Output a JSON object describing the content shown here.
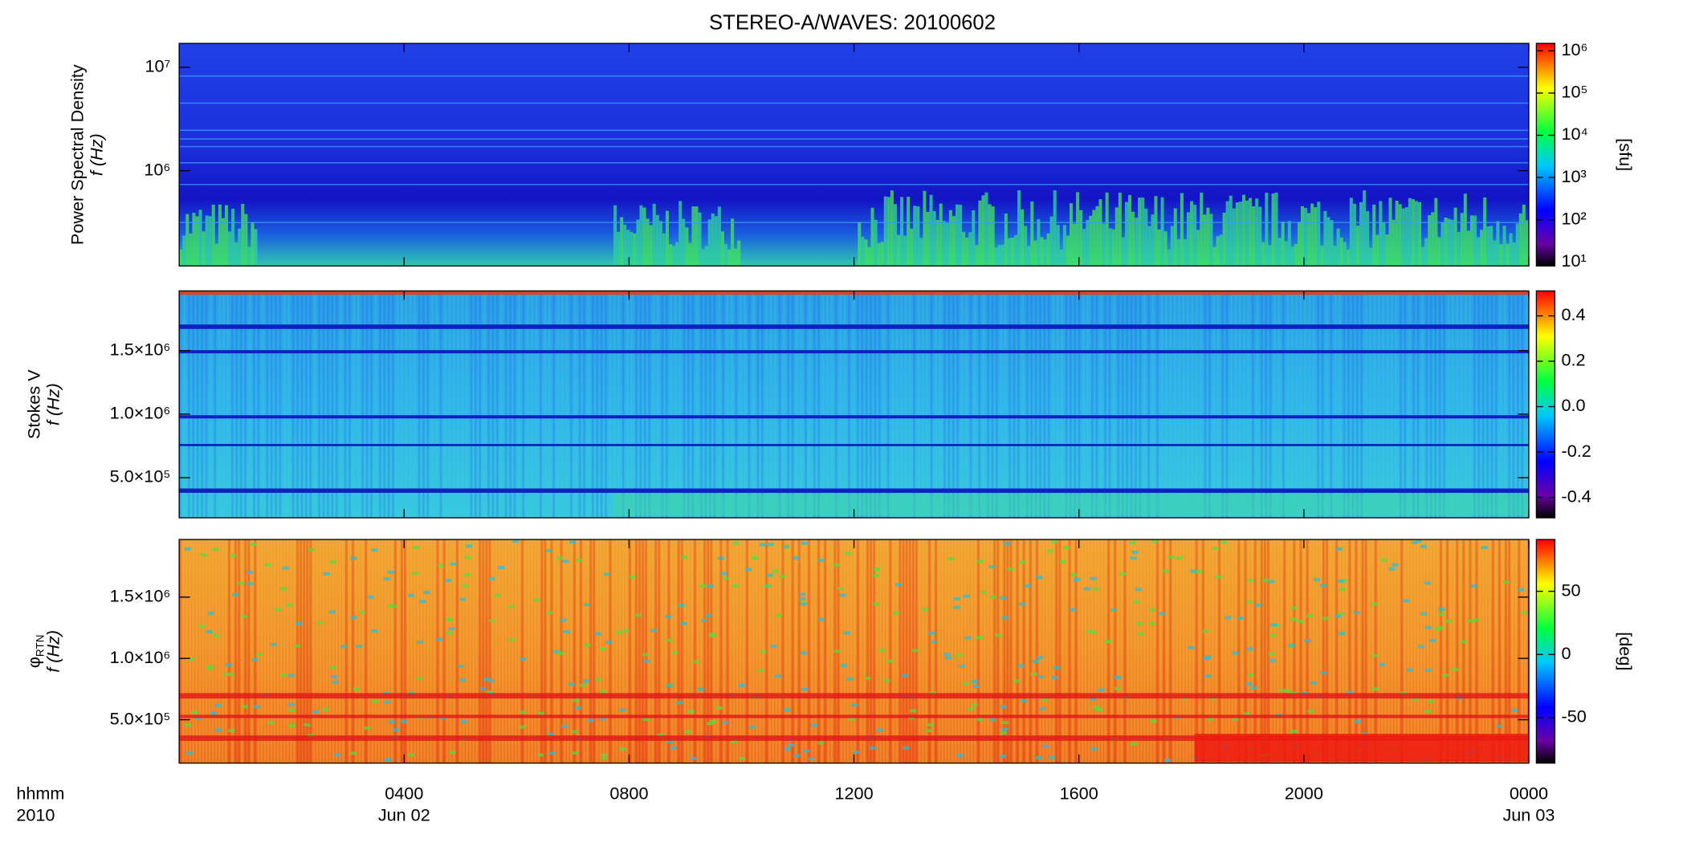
{
  "chart_data": [
    {
      "type": "heatmap",
      "title": "STEREO-A/WAVES: 20100602",
      "ylabel_lines": [
        "Power Spectral Density",
        "f (Hz)"
      ],
      "ylog": true,
      "ylim": [
        120000,
        17000000
      ],
      "yticks": [
        {
          "value": 1000000,
          "label": "10⁶"
        },
        {
          "value": 10000000,
          "label": "10⁷"
        }
      ],
      "clog": true,
      "clim": [
        8,
        1500000
      ],
      "cticks": [
        {
          "value": 10,
          "label": "10¹"
        },
        {
          "value": 100,
          "label": "10²"
        },
        {
          "value": 1000,
          "label": "10³"
        },
        {
          "value": 10000,
          "label": "10⁴"
        },
        {
          "value": 100000,
          "label": "10⁵"
        },
        {
          "value": 1000000,
          "label": "10⁶"
        }
      ],
      "clabel": "[sfu]"
    },
    {
      "type": "heatmap",
      "ylabel_lines": [
        "Stokes V",
        "f (Hz)"
      ],
      "ylog": false,
      "ylim": [
        184000,
        1970000
      ],
      "yticks": [
        {
          "value": 500000,
          "label": "5.0×10⁵"
        },
        {
          "value": 1000000,
          "label": "1.0×10⁶"
        },
        {
          "value": 1500000,
          "label": "1.5×10⁶"
        }
      ],
      "clog": false,
      "clim": [
        -0.49,
        0.51
      ],
      "cticks": [
        -0.4,
        -0.2,
        {
          "value": 0,
          "label": "0.0"
        },
        0.2,
        0.4
      ]
    },
    {
      "type": "heatmap",
      "ylabel_lines": [
        "φ",
        "f (Hz)"
      ],
      "ylabel_subscript": "RTN",
      "ylog": false,
      "ylim": [
        146000,
        1970000
      ],
      "yticks": [
        {
          "value": 500000,
          "label": "5.0×10⁵"
        },
        {
          "value": 1000000,
          "label": "1.0×10⁶"
        },
        {
          "value": 1500000,
          "label": "1.5×10⁶"
        }
      ],
      "clog": false,
      "clim": [
        -86,
        91
      ],
      "cticks": [
        -50,
        0,
        50
      ],
      "clabel": "[deg]",
      "xlabel_lines": [
        "hhmm",
        "2010"
      ],
      "xlim": [
        0,
        24
      ],
      "xticks": [
        {
          "value": 4,
          "label": "0400"
        },
        {
          "value": 8,
          "label": "0800"
        },
        {
          "value": 12,
          "label": "1200"
        },
        {
          "value": 16,
          "label": "1600"
        },
        {
          "value": 20,
          "label": "2000"
        },
        {
          "value": 24,
          "label": "0000"
        }
      ],
      "date_ticks": [
        {
          "value": 4,
          "label": "Jun 02"
        },
        {
          "value": 24,
          "label": "Jun 03"
        }
      ]
    }
  ]
}
